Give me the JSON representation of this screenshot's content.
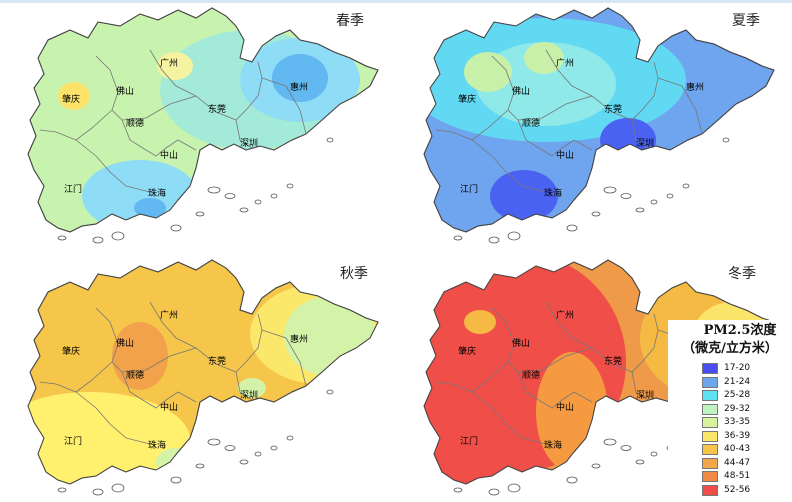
{
  "panels": [
    {
      "season": "春季",
      "colors": {
        "base": "#c8f3ae",
        "b1": "#a4ead8",
        "b2": "#8edcf5",
        "b3": "#62b8f0",
        "spot1": "#f5f2a0",
        "spot2": "#fbe36a"
      }
    },
    {
      "season": "夏季",
      "colors": {
        "base": "#6fa4ee",
        "b1": "#62d9f3",
        "b2": "#8ee9e8",
        "b3": "#4a62f2",
        "spot1": "#c8f0a8",
        "spot2": "#c8f0a8"
      }
    },
    {
      "season": "秋季",
      "colors": {
        "base": "#f5c64a",
        "b1": "#fbe86a",
        "b2": "#fff06e",
        "b3": "#d4f2a8",
        "spot1": "#f1a24a",
        "spot2": "#f1a24a"
      }
    },
    {
      "season": "冬季",
      "colors": {
        "base": "#ef9a48",
        "b1": "#f04e48",
        "b2": "#f59a40",
        "b3": "#fbe46a",
        "spot1": "#f5ba44",
        "spot2": "#fbd34a"
      }
    }
  ],
  "cities": {
    "zhaoqing": "肇庆",
    "foshan": "佛山",
    "guangzhou": "广州",
    "dongguan": "东莞",
    "huizhou": "惠州",
    "shunde": "顺德",
    "shenzhen": "深圳",
    "zhongshan": "中山",
    "jiangmen": "江门",
    "zhuhai": "珠海"
  },
  "legend": {
    "title": "PM2.5浓度",
    "subtitle": "（微克/立方米）",
    "items": [
      {
        "label": "17-20",
        "color": "#4a4ef0"
      },
      {
        "label": "21-24",
        "color": "#6ea6ee"
      },
      {
        "label": "25-28",
        "color": "#5ee2f2"
      },
      {
        "label": "29-32",
        "color": "#bff3c0"
      },
      {
        "label": "33-35",
        "color": "#d8f3a0"
      },
      {
        "label": "36-39",
        "color": "#fbe86a"
      },
      {
        "label": "40-43",
        "color": "#f5c64a"
      },
      {
        "label": "44-47",
        "color": "#f2a84a"
      },
      {
        "label": "48-51",
        "color": "#ef8a46"
      },
      {
        "label": "52-56",
        "color": "#ef4e48"
      }
    ]
  }
}
